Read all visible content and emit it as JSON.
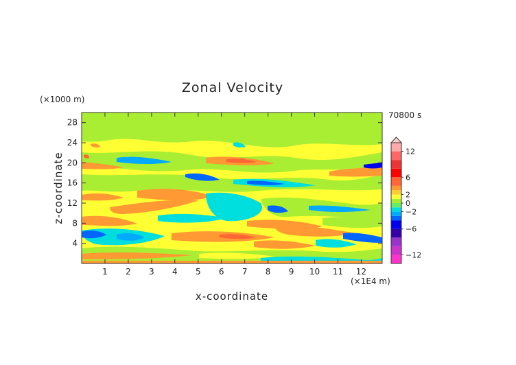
{
  "chart_data": {
    "type": "heatmap",
    "title": "Zonal Velocity",
    "xlabel": "x-coordinate",
    "ylabel": "z-coordinate",
    "x_unit": "(×1E4 m)",
    "y_unit": "(×1000 m)",
    "time_label": "70800 s",
    "xlim": [
      0,
      12.9
    ],
    "ylim": [
      0,
      30
    ],
    "x_ticks": [
      1,
      2,
      3,
      4,
      5,
      6,
      7,
      8,
      9,
      10,
      11,
      12
    ],
    "y_ticks": [
      4,
      8,
      12,
      16,
      20,
      24,
      28
    ],
    "colorbar": {
      "levels": [
        -14,
        -12,
        -10,
        -8,
        -6,
        -4,
        -3,
        -2,
        -1,
        0,
        1,
        2,
        3,
        4,
        6,
        8,
        10,
        12,
        14
      ],
      "colors": [
        "#ff33cc",
        "#cc33cc",
        "#9933cc",
        "#3300aa",
        "#0000ee",
        "#0066ff",
        "#00aaff",
        "#00dddd",
        "#66ee66",
        "#aaee33",
        "#ffff33",
        "#ffcc33",
        "#ff9933",
        "#ff6633",
        "#ff0000",
        "#ee3333",
        "#ff6666",
        "#ffaaaa"
      ],
      "tick_labels": [
        "12",
        "6",
        "2",
        "0",
        "−2",
        "−6",
        "−12"
      ],
      "tick_values": [
        12,
        6,
        2,
        0,
        -2,
        -6,
        -12
      ]
    }
  }
}
